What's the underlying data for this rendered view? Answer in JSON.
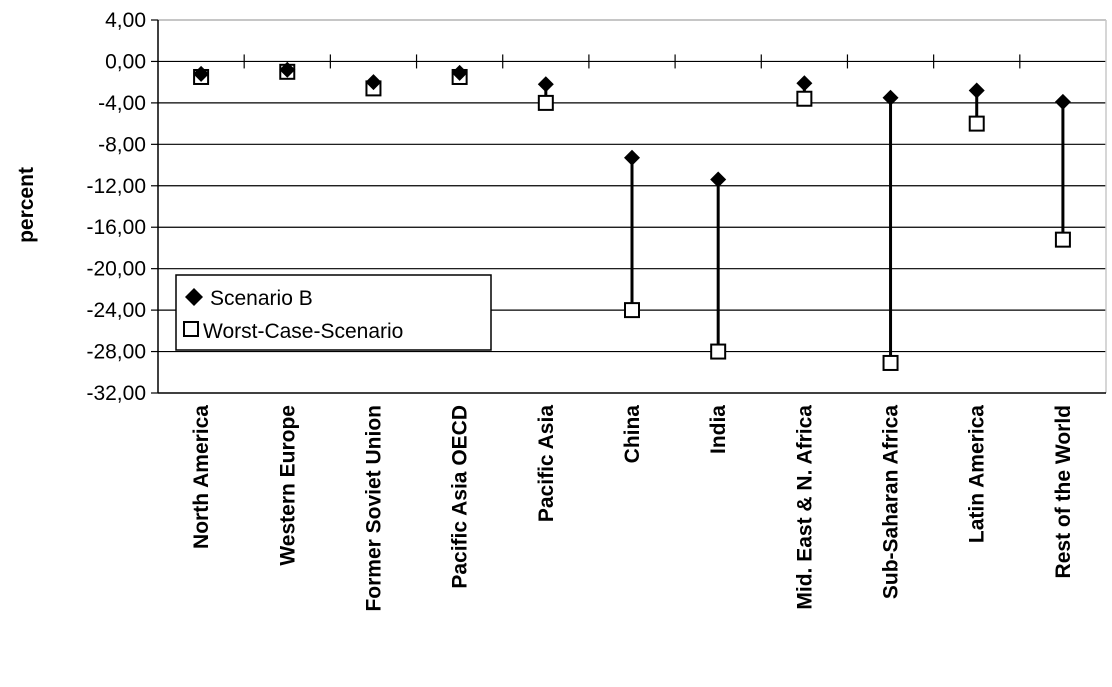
{
  "chart_data": {
    "type": "scatter",
    "ylabel": "percent",
    "ylim": [
      -32,
      4
    ],
    "yticks": [
      4,
      0,
      -4,
      -8,
      -12,
      -16,
      -20,
      -24,
      -28,
      -32
    ],
    "ytick_labels": [
      "4,00",
      "0,00",
      "-4,00",
      "-8,00",
      "-12,00",
      "-16,00",
      "-20,00",
      "-24,00",
      "-28,00",
      "-32,00"
    ],
    "grid": true,
    "legend_position": "bottom-left",
    "categories": [
      "North America",
      "Western Europe",
      "Former Soviet Union",
      "Pacific Asia OECD",
      "Pacific Asia",
      "China",
      "India",
      "Mid. East & N. Africa",
      "Sub-Saharan Africa",
      "Latin America",
      "Rest of the World"
    ],
    "series": [
      {
        "name": "Scenario B",
        "marker": "diamond",
        "values": [
          -1.2,
          -0.8,
          -2.0,
          -1.1,
          -2.2,
          -9.3,
          -11.4,
          -2.1,
          -3.5,
          -2.8,
          -3.9
        ]
      },
      {
        "name": "Worst-Case-Scenario",
        "marker": "square",
        "values": [
          -1.5,
          -1.0,
          -2.6,
          -1.5,
          -4.0,
          -24.0,
          -28.0,
          -3.6,
          -29.1,
          -6.0,
          -17.2
        ]
      }
    ],
    "connectors": "vertical lines between series values per category"
  }
}
